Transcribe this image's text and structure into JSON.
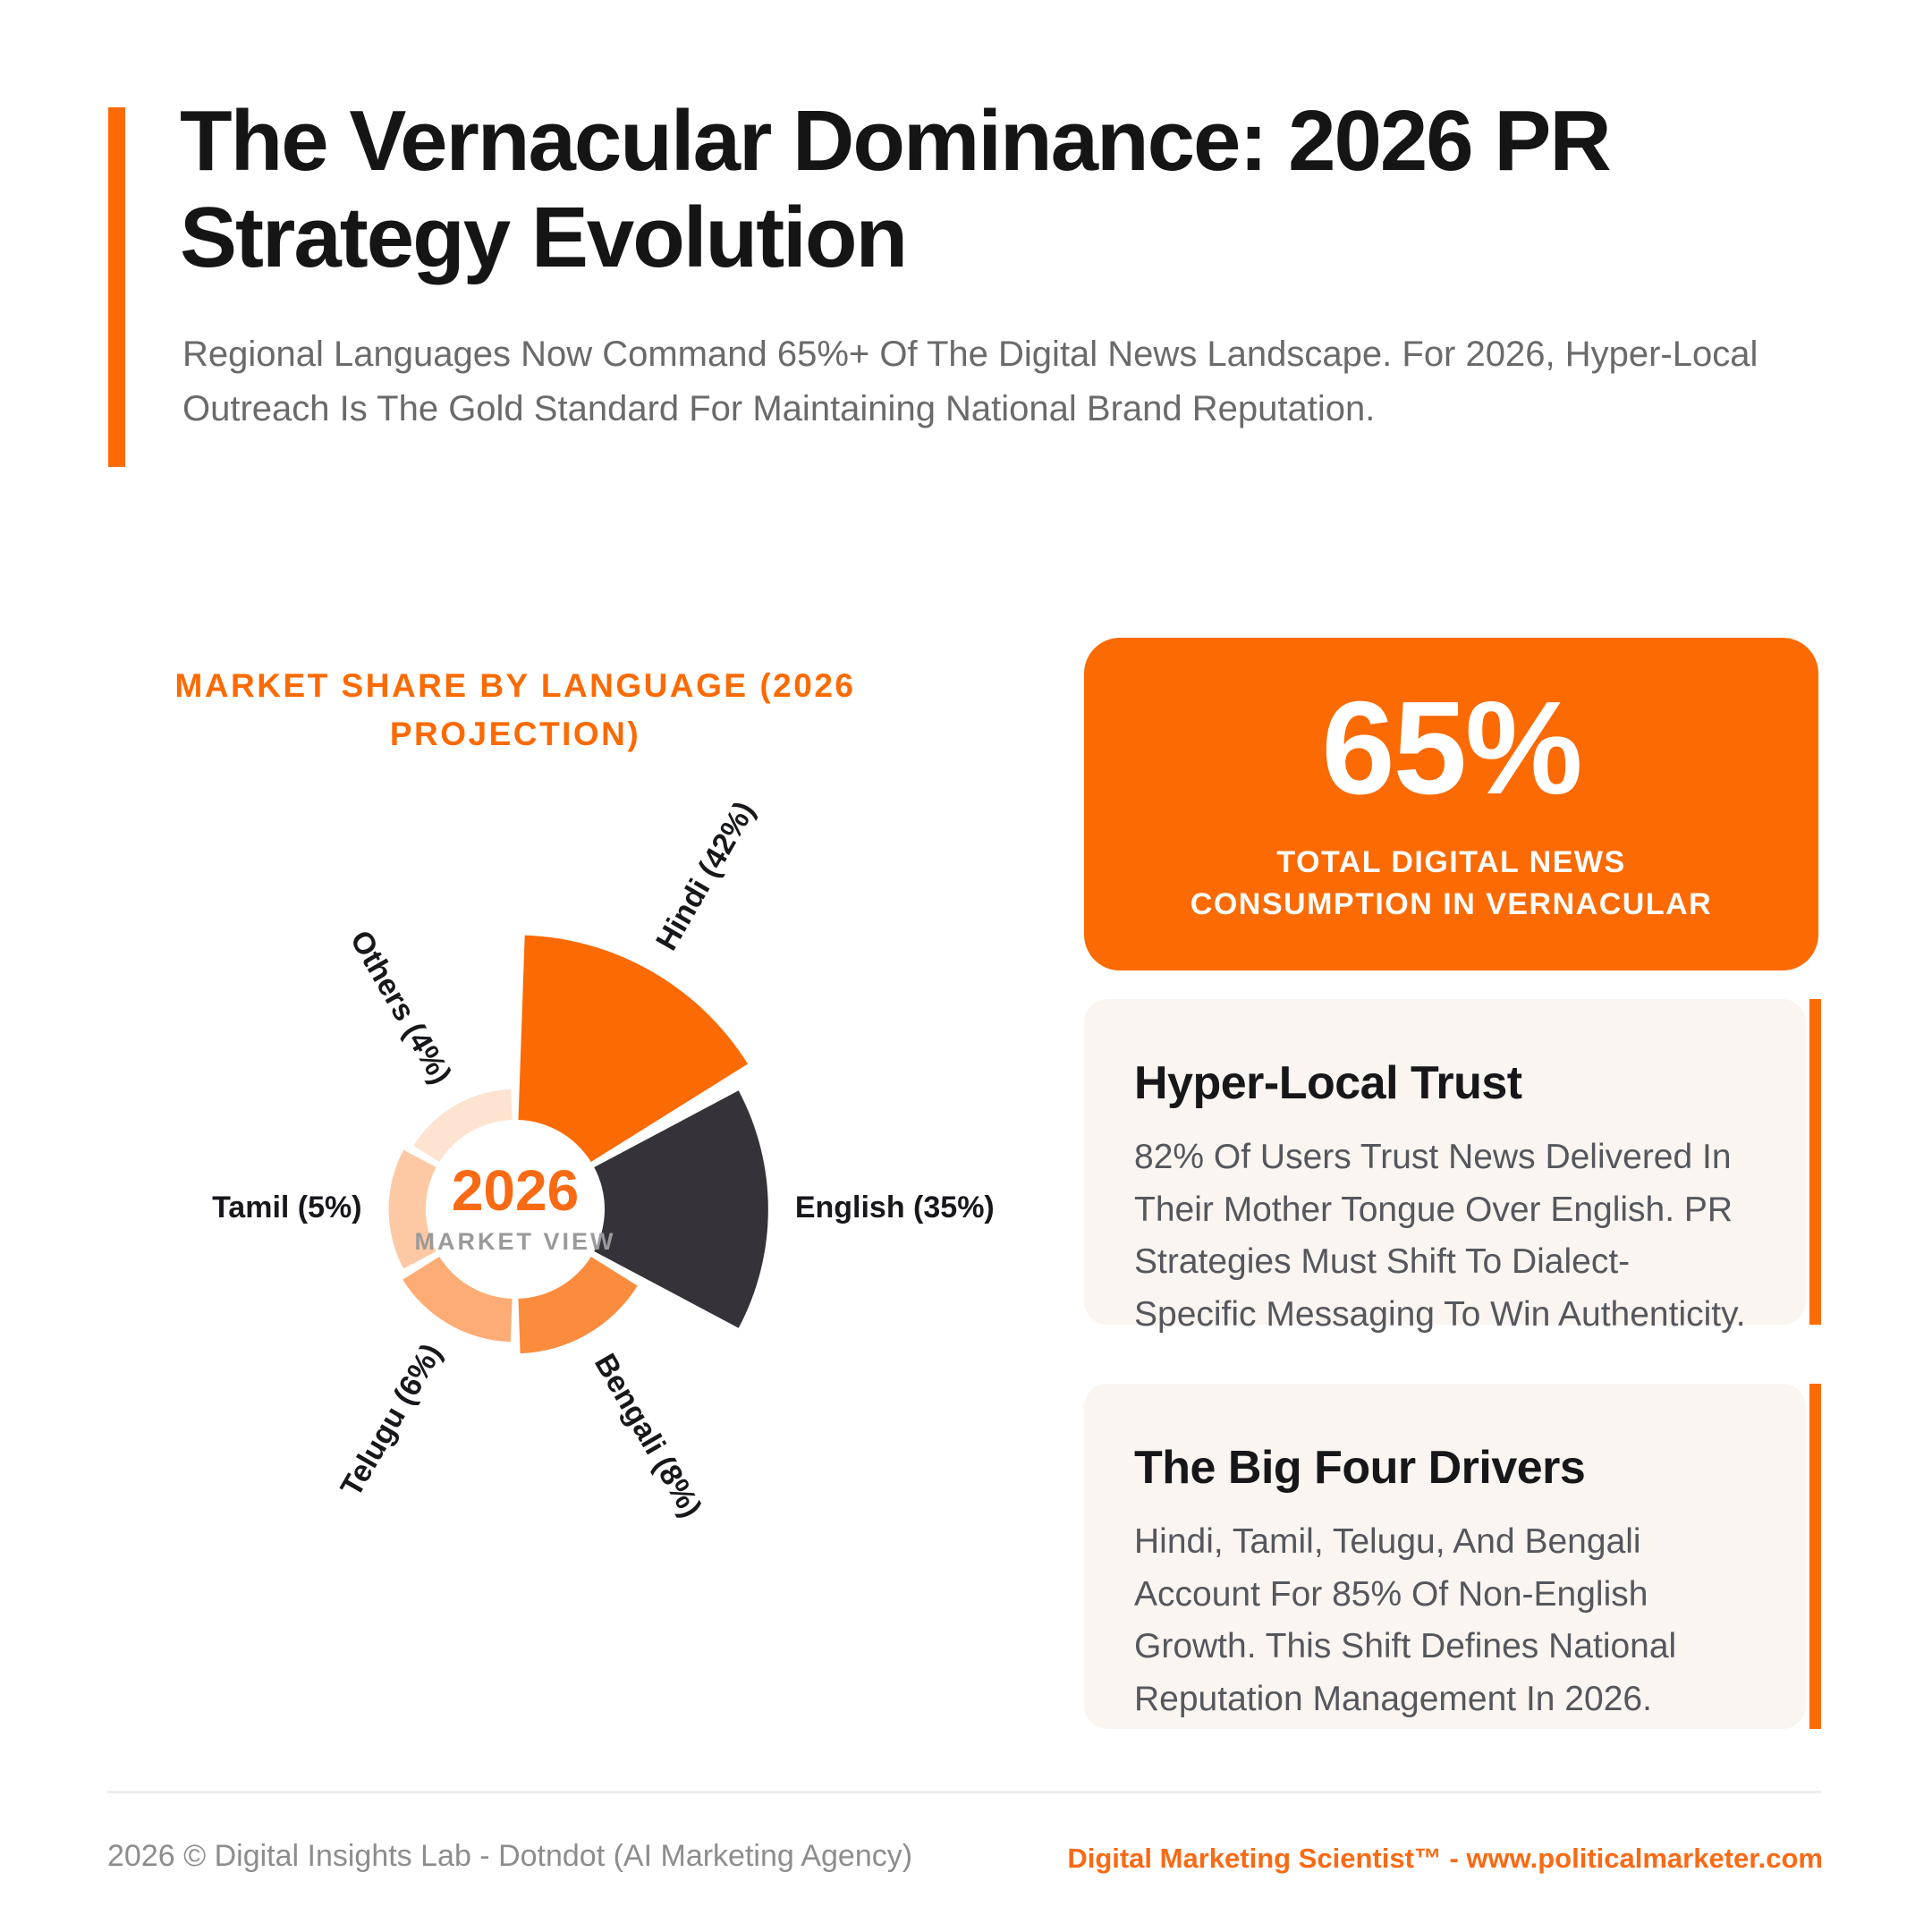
{
  "header": {
    "title_line1": "The Vernacular Dominance: 2026 PR",
    "title_line2": "Strategy Evolution",
    "subtitle": "Regional Languages Now Command 65%+ Of The Digital News Landscape. For 2026, Hyper-Local Outreach Is The Gold Standard For Maintaining National Brand Reputation."
  },
  "chart": {
    "heading_line1": "MARKET SHARE BY LANGUAGE (2026",
    "heading_line2": "PROJECTION)",
    "center_year": "2026",
    "center_caption": "MARKET VIEW"
  },
  "chart_data": {
    "type": "pie",
    "variant": "nightingale-rose-donut",
    "title": "MARKET SHARE BY LANGUAGE (2026 PROJECTION)",
    "unit": "percent",
    "categories": [
      "Hindi",
      "English",
      "Bengali",
      "Telugu",
      "Tamil",
      "Others"
    ],
    "values": [
      42,
      35,
      8,
      6,
      5,
      4
    ],
    "colors": [
      "#FB6A03",
      "#353339",
      "#FB8B3D",
      "#FCAC74",
      "#FDC9A4",
      "#FEE3D0"
    ],
    "label_format": "Category (Value%)",
    "center_label": "2026",
    "center_sublabel": "MARKET VIEW",
    "start_angle_deg": 0,
    "direction": "clockwise",
    "equal_angles": true,
    "radius_encodes": "value"
  },
  "stat_card": {
    "value": "65%",
    "caption_line1": "TOTAL DIGITAL NEWS",
    "caption_line2": "CONSUMPTION IN VERNACULAR"
  },
  "cards": [
    {
      "title": "Hyper-Local Trust",
      "body": "82% Of Users Trust News Delivered In Their Mother Tongue Over English. PR Strategies Must Shift To Dialect-Specific Messaging To Win Authenticity."
    },
    {
      "title": "The Big Four Drivers",
      "body": "Hindi, Tamil, Telugu, And Bengali Account For 85% Of Non-English Growth. This Shift Defines National Reputation Management In 2026."
    }
  ],
  "footer": {
    "left": "2026 © Digital Insights Lab - Dotndot (AI Marketing Agency)",
    "right": "Digital Marketing Scientist™ - www.politicalmarketer.com"
  },
  "colors": {
    "accent": "#FB6A03",
    "dark_slice": "#353339",
    "card_background": "#FAF5F0",
    "title_text": "#151515",
    "body_text": "#55575d"
  }
}
